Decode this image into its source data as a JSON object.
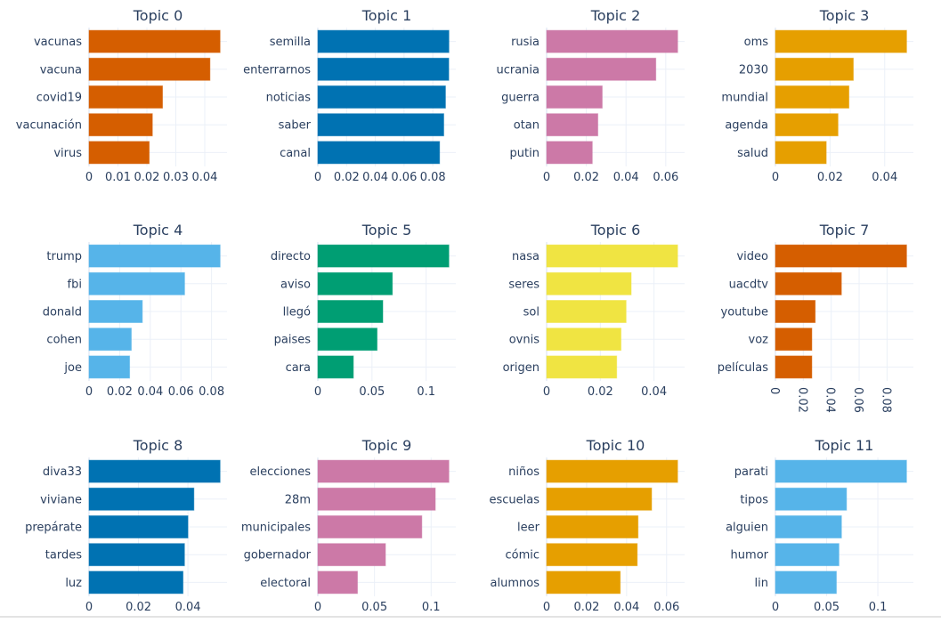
{
  "chart_data": {
    "type": "bar",
    "orientation": "horizontal",
    "layout": "grid 3 rows x 4 columns of subplots",
    "grid": true,
    "legend": "none",
    "subplots": [
      {
        "title": "Topic 0",
        "color": "#D55E00",
        "words": [
          "vacunas",
          "vacuna",
          "covid19",
          "vacunación",
          "virus"
        ],
        "values": [
          0.0453,
          0.0418,
          0.0254,
          0.0219,
          0.0208
        ],
        "xlim": [
          0,
          0.0477
        ],
        "ticks": [
          0,
          0.01,
          0.02,
          0.03,
          0.04
        ],
        "tick_labels": [
          "0",
          "0.01",
          "0.02",
          "0.03",
          "0.04"
        ],
        "tick_angle": 0
      },
      {
        "title": "Topic 1",
        "color": "#0072B2",
        "words": [
          "semilla",
          "enterrarnos",
          "noticias",
          "saber",
          "canal"
        ],
        "values": [
          0.0912,
          0.0911,
          0.0888,
          0.0876,
          0.0847
        ],
        "xlim": [
          0,
          0.096
        ],
        "ticks": [
          0,
          0.02,
          0.04,
          0.06,
          0.08
        ],
        "tick_labels": [
          "0",
          "0.02",
          "0.04",
          "0.06",
          "0.08"
        ],
        "tick_angle": 0
      },
      {
        "title": "Topic 2",
        "color": "#CC79A7",
        "words": [
          "rusia",
          "ucrania",
          "guerra",
          "otan",
          "putin"
        ],
        "values": [
          0.066,
          0.055,
          0.028,
          0.0258,
          0.023
        ],
        "xlim": [
          0,
          0.0695
        ],
        "ticks": [
          0,
          0.02,
          0.04,
          0.06
        ],
        "tick_labels": [
          "0",
          "0.02",
          "0.04",
          "0.06"
        ],
        "tick_angle": 0
      },
      {
        "title": "Topic 3",
        "color": "#E69F00",
        "words": [
          "oms",
          "2030",
          "mundial",
          "agenda",
          "salud"
        ],
        "values": [
          0.048,
          0.0285,
          0.0269,
          0.0229,
          0.0186
        ],
        "xlim": [
          0,
          0.0505
        ],
        "ticks": [
          0,
          0.02,
          0.04
        ],
        "tick_labels": [
          "0",
          "0.02",
          "0.04"
        ],
        "tick_angle": 0
      },
      {
        "title": "Topic 4",
        "color": "#56B4E9",
        "words": [
          "trump",
          "fbi",
          "donald",
          "cohen",
          "joe"
        ],
        "values": [
          0.0856,
          0.0624,
          0.0348,
          0.0276,
          0.0265
        ],
        "xlim": [
          0,
          0.0901
        ],
        "ticks": [
          0,
          0.02,
          0.04,
          0.06,
          0.08
        ],
        "tick_labels": [
          "0",
          "0.02",
          "0.04",
          "0.06",
          "0.08"
        ],
        "tick_angle": 0
      },
      {
        "title": "Topic 5",
        "color": "#009E73",
        "words": [
          "directo",
          "aviso",
          "llegó",
          "paises",
          "cara"
        ],
        "values": [
          0.121,
          0.0688,
          0.06,
          0.0547,
          0.0328
        ],
        "xlim": [
          0,
          0.1274
        ],
        "ticks": [
          0,
          0.05,
          0.1
        ],
        "tick_labels": [
          "0",
          "0.05",
          "0.1"
        ],
        "tick_angle": 0
      },
      {
        "title": "Topic 6",
        "color": "#F0E442",
        "words": [
          "nasa",
          "seres",
          "sol",
          "ovnis",
          "origen"
        ],
        "values": [
          0.0488,
          0.0315,
          0.0296,
          0.0277,
          0.0261
        ],
        "xlim": [
          0,
          0.0514
        ],
        "ticks": [
          0,
          0.02,
          0.04
        ],
        "tick_labels": [
          "0",
          "0.02",
          "0.04"
        ],
        "tick_angle": 0
      },
      {
        "title": "Topic 7",
        "color": "#D55E00",
        "words": [
          "video",
          "uacdtv",
          "youtube",
          "voz",
          "películas"
        ],
        "values": [
          0.094,
          0.0473,
          0.0285,
          0.0261,
          0.0261
        ],
        "xlim": [
          0,
          0.0989
        ],
        "ticks": [
          0,
          0.02,
          0.04,
          0.06,
          0.08
        ],
        "tick_labels": [
          "0",
          "0.02",
          "0.04",
          "0.06",
          "0.08"
        ],
        "tick_angle": 90
      },
      {
        "title": "Topic 8",
        "color": "#0072B2",
        "words": [
          "diva33",
          "viviane",
          "prepárate",
          "tardes",
          "luz"
        ],
        "values": [
          0.053,
          0.0424,
          0.04,
          0.0386,
          0.038
        ],
        "xlim": [
          0,
          0.0558
        ],
        "ticks": [
          0,
          0.02,
          0.04
        ],
        "tick_labels": [
          "0",
          "0.02",
          "0.04"
        ],
        "tick_angle": 0
      },
      {
        "title": "Topic 9",
        "color": "#CC79A7",
        "words": [
          "elecciones",
          "28m",
          "municipales",
          "gobernador",
          "electoral"
        ],
        "values": [
          0.1157,
          0.1037,
          0.0918,
          0.0597,
          0.035
        ],
        "xlim": [
          0,
          0.1218
        ],
        "ticks": [
          0,
          0.05,
          0.1
        ],
        "tick_labels": [
          "0",
          "0.05",
          "0.1"
        ],
        "tick_angle": 0
      },
      {
        "title": "Topic 10",
        "color": "#E69F00",
        "words": [
          "niños",
          "escuelas",
          "leer",
          "cómic",
          "alumnos"
        ],
        "values": [
          0.0655,
          0.0525,
          0.0457,
          0.0453,
          0.0368
        ],
        "xlim": [
          0,
          0.069
        ],
        "ticks": [
          0,
          0.02,
          0.04,
          0.06
        ],
        "tick_labels": [
          "0",
          "0.02",
          "0.04",
          "0.06"
        ],
        "tick_angle": 0
      },
      {
        "title": "Topic 11",
        "color": "#56B4E9",
        "words": [
          "parati",
          "tipos",
          "alguien",
          "humor",
          "lin"
        ],
        "values": [
          0.128,
          0.0694,
          0.0645,
          0.062,
          0.0595
        ],
        "xlim": [
          0,
          0.1347
        ],
        "ticks": [
          0,
          0.05,
          0.1
        ],
        "tick_labels": [
          "0",
          "0.05",
          "0.1"
        ],
        "tick_angle": 0
      }
    ]
  },
  "style": {
    "title_color": "#2a3f5f",
    "text_color": "#2a3f5f",
    "grid_color": "#ebf0f8",
    "zeroline_color": "#ebf0f8"
  }
}
